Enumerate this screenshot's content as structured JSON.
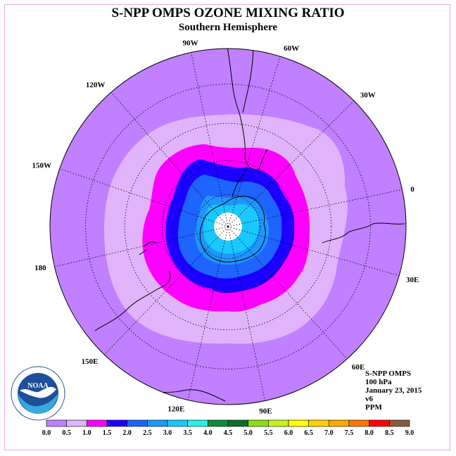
{
  "header": {
    "title": "S-NPP OMPS OZONE MIXING RATIO",
    "subtitle": "Southern Hemisphere"
  },
  "map": {
    "projection": "south-polar-stereographic",
    "longitude_labels": [
      "90W",
      "60W",
      "30W",
      "0",
      "30E",
      "60E",
      "90E",
      "120E",
      "150E",
      "180",
      "150W",
      "120W"
    ],
    "contour_colors": {
      "0.5-1.0": "#e0b4fa",
      "1.0-1.5": "#ff00ff",
      "1.5-2.0": "#1c00ff",
      "2.0-2.5": "#1e64ff",
      "2.5-3.0": "#1e96ff",
      "3.0-3.5": "#19c8ff",
      "0.0-0.5": "#c080ff"
    },
    "pole_fill": "#ffffff"
  },
  "info": {
    "instrument": "S-NPP OMPS",
    "level": "100 hPa",
    "date": "January 23, 2015",
    "version": "v6",
    "units": "PPM"
  },
  "logo": {
    "text": "NOAA",
    "ring_text": "NATIONAL OCEANIC AND ATMOSPHERIC ADMINISTRATION",
    "ring_text_bottom": "U.S. DEPARTMENT OF COMMERCE"
  },
  "colorbar": {
    "ticks": [
      "0.0",
      "0.5",
      "1.0",
      "1.5",
      "2.0",
      "2.5",
      "3.0",
      "3.5",
      "4.0",
      "4.5",
      "5.0",
      "5.5",
      "6.0",
      "6.5",
      "7.0",
      "7.5",
      "8.0",
      "8.5",
      "9.0"
    ],
    "colors": [
      "#c080ff",
      "#e0b4fa",
      "#ff00ff",
      "#1c00ff",
      "#1e64ff",
      "#1e96ff",
      "#19c8ff",
      "#28f0e6",
      "#0a8c3c",
      "#0a6e28",
      "#8cdc14",
      "#c8f01e",
      "#ffff00",
      "#ffd200",
      "#ffaa00",
      "#ff7800",
      "#ff0000",
      "#8c5a3c"
    ]
  }
}
